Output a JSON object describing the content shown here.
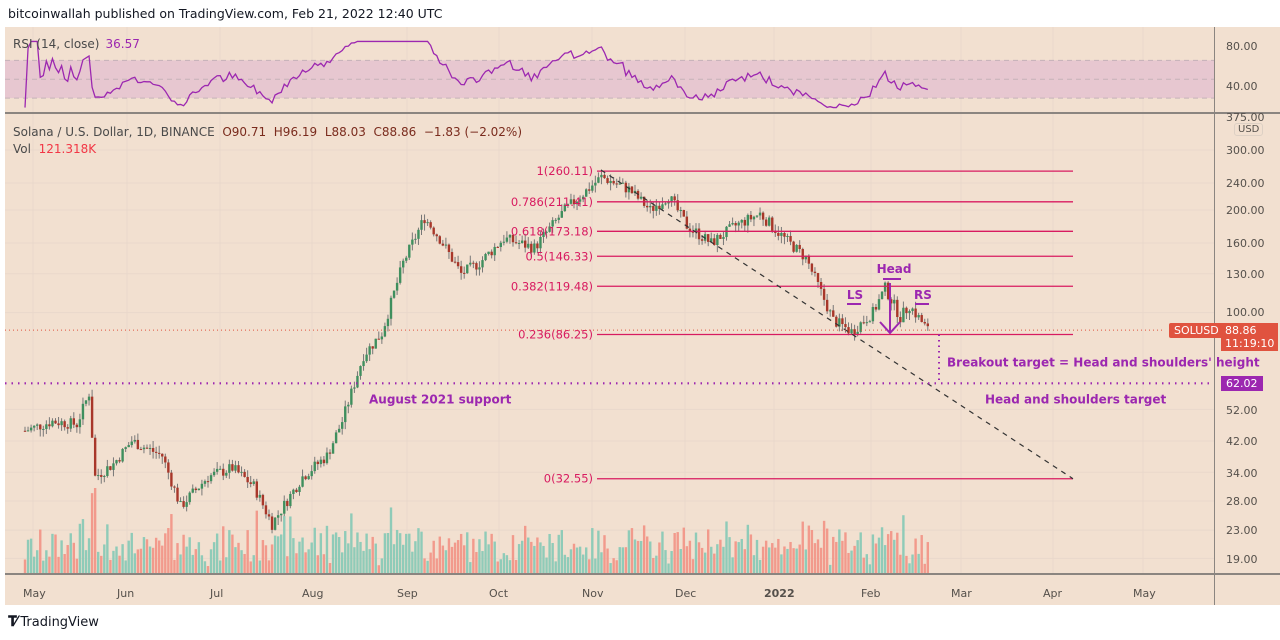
{
  "header": {
    "published": "bitcoinwallah published on TradingView.com, Feb 21, 2022 12:40 UTC"
  },
  "rsi": {
    "label": "RSI (14, close)",
    "value": "36.57",
    "axis": [
      "80.00",
      "40.00"
    ],
    "band": [
      30,
      70
    ],
    "color": "#9c27b0"
  },
  "legend": {
    "symbol": "Solana / U.S. Dollar, 1D, BINANCE",
    "open": "O90.71",
    "high": "H96.19",
    "low": "L88.03",
    "close": "C88.86",
    "change": "−1.83 (−2.02%)",
    "vol_label": "Vol",
    "vol_value": "121.318K"
  },
  "price_axis": {
    "currency": "USD",
    "ticks": [
      "375.00",
      "300.00",
      "240.00",
      "200.00",
      "160.00",
      "130.00",
      "100.00",
      "52.00",
      "42.00",
      "34.00",
      "28.00",
      "23.00",
      "19.00"
    ]
  },
  "tags": {
    "symbol": "SOLUSD",
    "last_price": "88.86",
    "countdown": "11:19:10",
    "target": "62.02"
  },
  "time_axis": {
    "labels": [
      "May",
      "Jun",
      "Jul",
      "Aug",
      "Sep",
      "Oct",
      "Nov",
      "Dec",
      "2022",
      "Feb",
      "Mar",
      "Apr",
      "May"
    ]
  },
  "annotations": {
    "aug_support": "August 2021 support",
    "breakout": "Breakout target = Head and shoulders' height",
    "hs_target": "Head and shoulders target",
    "head": "Head",
    "ls": "LS",
    "rs": "RS"
  },
  "fib_levels": [
    {
      "label": "1(260.11)",
      "price": 260.11
    },
    {
      "label": "0.786(211.41)",
      "price": 211.41
    },
    {
      "label": "0.618(173.18)",
      "price": 173.18
    },
    {
      "label": "0.5(146.33)",
      "price": 146.33
    },
    {
      "label": "0.382(119.48)",
      "price": 119.48
    },
    {
      "label": "0.236(86.25)",
      "price": 86.25
    },
    {
      "label": "0(32.55)",
      "price": 32.55
    }
  ],
  "colors": {
    "up": "#26a69a",
    "down": "#ef5350",
    "candle_up": "#3f8f5e",
    "candle_down": "#a8372a",
    "fib": "#d81b60",
    "annotation": "#9c27b0",
    "background": "#f2e0d0"
  },
  "footer": {
    "brand": "TradingView"
  },
  "chart_data": {
    "type": "candlestick",
    "title": "Solana / U.S. Dollar, 1D, BINANCE",
    "xlabel": "",
    "ylabel": "USD",
    "yscale": "log",
    "ylim": [
      16,
      375
    ],
    "x": [
      "May",
      "Jun",
      "Jul",
      "Aug",
      "Sep",
      "Oct",
      "Nov",
      "Dec",
      "2022",
      "Feb",
      "Mar",
      "Apr",
      "May"
    ],
    "approx_close_path": [
      [
        "2021-05-01",
        45
      ],
      [
        "2021-05-10",
        48
      ],
      [
        "2021-05-18",
        47
      ],
      [
        "2021-05-22",
        58
      ],
      [
        "2021-05-24",
        33
      ],
      [
        "2021-05-30",
        36
      ],
      [
        "2021-06-05",
        42
      ],
      [
        "2021-06-15",
        38
      ],
      [
        "2021-06-21",
        27
      ],
      [
        "2021-06-30",
        33
      ],
      [
        "2021-07-08",
        35
      ],
      [
        "2021-07-15",
        31
      ],
      [
        "2021-07-21",
        24
      ],
      [
        "2021-07-31",
        33
      ],
      [
        "2021-08-08",
        38
      ],
      [
        "2021-08-13",
        48
      ],
      [
        "2021-08-20",
        75
      ],
      [
        "2021-08-26",
        87
      ],
      [
        "2021-09-02",
        140
      ],
      [
        "2021-09-09",
        190
      ],
      [
        "2021-09-14",
        165
      ],
      [
        "2021-09-21",
        130
      ],
      [
        "2021-09-27",
        140
      ],
      [
        "2021-10-05",
        165
      ],
      [
        "2021-10-15",
        155
      ],
      [
        "2021-10-25",
        200
      ],
      [
        "2021-11-06",
        250
      ],
      [
        "2021-11-15",
        230
      ],
      [
        "2021-11-22",
        200
      ],
      [
        "2021-11-28",
        220
      ],
      [
        "2021-12-04",
        180
      ],
      [
        "2021-12-12",
        160
      ],
      [
        "2021-12-20",
        180
      ],
      [
        "2021-12-28",
        195
      ],
      [
        "2022-01-05",
        165
      ],
      [
        "2022-01-12",
        145
      ],
      [
        "2022-01-21",
        95
      ],
      [
        "2022-01-27",
        88
      ],
      [
        "2022-02-03",
        100
      ],
      [
        "2022-02-07",
        118
      ],
      [
        "2022-02-12",
        97
      ],
      [
        "2022-02-15",
        105
      ],
      [
        "2022-02-21",
        88.86
      ]
    ],
    "last": {
      "open": 90.71,
      "high": 96.19,
      "low": 88.03,
      "close": 88.86,
      "change": -1.83,
      "change_pct": -2.02,
      "volume": "121.318K"
    },
    "overlays": {
      "fibonacci": [
        [
          1,
          260.11
        ],
        [
          0.786,
          211.41
        ],
        [
          0.618,
          173.18
        ],
        [
          0.5,
          146.33
        ],
        [
          0.382,
          119.48
        ],
        [
          0.236,
          86.25
        ],
        [
          0,
          32.55
        ]
      ],
      "support_line": 62.02,
      "trendline": "dashed from Nov 2021 high (~260) down to ~32.55 near Apr 2022",
      "pattern": "head and shoulders (LS, Head, RS) Jan–Feb 2022"
    },
    "rsi": {
      "period": 14,
      "last": 36.57,
      "bands": [
        30,
        70
      ]
    }
  }
}
